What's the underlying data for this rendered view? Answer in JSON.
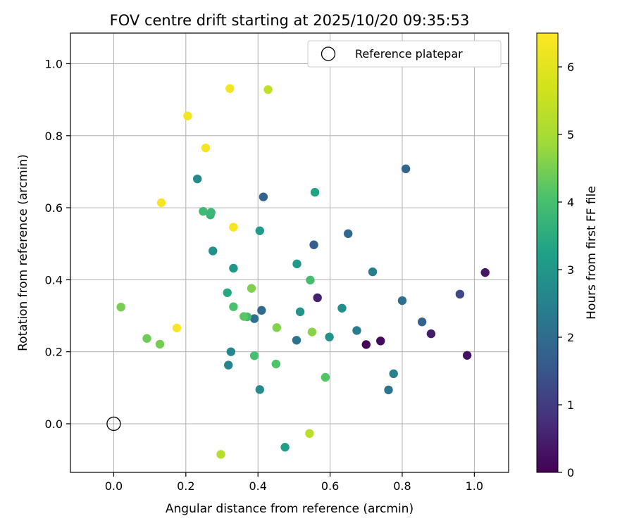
{
  "chart_data": {
    "type": "scatter",
    "title": "FOV centre drift starting at 2025/10/20 09:35:53",
    "xlabel": "Angular distance from reference (arcmin)",
    "ylabel": "Rotation from reference (arcmin)",
    "xlim": [
      -0.12,
      1.095
    ],
    "ylim": [
      -0.135,
      1.085
    ],
    "xticks": [
      0.0,
      0.2,
      0.4,
      0.6,
      0.8,
      1.0
    ],
    "yticks": [
      0.0,
      0.2,
      0.4,
      0.6,
      0.8,
      1.0
    ],
    "xtick_labels": [
      "0.0",
      "0.2",
      "0.4",
      "0.6",
      "0.8",
      "1.0"
    ],
    "ytick_labels": [
      "0.0",
      "0.2",
      "0.4",
      "0.6",
      "0.8",
      "1.0"
    ],
    "grid": true,
    "legend": {
      "placement": "upper right",
      "entries": [
        "Reference platepar"
      ]
    },
    "reference_point": {
      "name": "Reference platepar",
      "x": 0.0,
      "y": 0.0,
      "marker": "open-circle"
    },
    "colorbar": {
      "label": "Hours from first FF file",
      "colormap": "viridis",
      "range": [
        0,
        6.5
      ],
      "ticks": [
        0,
        1,
        2,
        3,
        4,
        5,
        6
      ],
      "tick_labels": [
        "0",
        "1",
        "2",
        "3",
        "4",
        "5",
        "6"
      ]
    },
    "points": [
      {
        "x": 0.7,
        "y": 0.22,
        "hours": 0.05
      },
      {
        "x": 0.74,
        "y": 0.23,
        "hours": 0.15
      },
      {
        "x": 0.98,
        "y": 0.19,
        "hours": 0.25
      },
      {
        "x": 1.03,
        "y": 0.42,
        "hours": 0.35
      },
      {
        "x": 0.88,
        "y": 0.25,
        "hours": 0.45
      },
      {
        "x": 0.565,
        "y": 0.35,
        "hours": 0.55
      },
      {
        "x": 0.96,
        "y": 0.36,
        "hours": 1.25
      },
      {
        "x": 0.555,
        "y": 0.497,
        "hours": 1.7
      },
      {
        "x": 0.415,
        "y": 0.63,
        "hours": 1.75
      },
      {
        "x": 0.855,
        "y": 0.283,
        "hours": 1.8
      },
      {
        "x": 0.81,
        "y": 0.708,
        "hours": 1.85
      },
      {
        "x": 0.65,
        "y": 0.528,
        "hours": 1.9
      },
      {
        "x": 0.41,
        "y": 0.315,
        "hours": 1.95
      },
      {
        "x": 0.39,
        "y": 0.292,
        "hours": 2.05
      },
      {
        "x": 0.8,
        "y": 0.342,
        "hours": 2.1
      },
      {
        "x": 0.507,
        "y": 0.232,
        "hours": 2.15
      },
      {
        "x": 0.762,
        "y": 0.094,
        "hours": 2.2
      },
      {
        "x": 0.674,
        "y": 0.259,
        "hours": 2.35
      },
      {
        "x": 0.718,
        "y": 0.422,
        "hours": 2.4
      },
      {
        "x": 0.776,
        "y": 0.139,
        "hours": 2.45
      },
      {
        "x": 0.318,
        "y": 0.163,
        "hours": 2.55
      },
      {
        "x": 0.325,
        "y": 0.2,
        "hours": 2.6
      },
      {
        "x": 0.232,
        "y": 0.68,
        "hours": 2.7
      },
      {
        "x": 0.405,
        "y": 0.095,
        "hours": 2.75
      },
      {
        "x": 0.633,
        "y": 0.321,
        "hours": 2.8
      },
      {
        "x": 0.275,
        "y": 0.48,
        "hours": 2.85
      },
      {
        "x": 0.598,
        "y": 0.241,
        "hours": 2.9
      },
      {
        "x": 0.517,
        "y": 0.311,
        "hours": 2.95
      },
      {
        "x": 0.332,
        "y": 0.432,
        "hours": 3.0
      },
      {
        "x": 0.508,
        "y": 0.444,
        "hours": 3.05
      },
      {
        "x": 0.405,
        "y": 0.536,
        "hours": 3.1
      },
      {
        "x": 0.475,
        "y": -0.065,
        "hours": 3.2
      },
      {
        "x": 0.558,
        "y": 0.643,
        "hours": 3.3
      },
      {
        "x": 0.315,
        "y": 0.364,
        "hours": 3.4
      },
      {
        "x": 0.268,
        "y": 0.58,
        "hours": 3.7
      },
      {
        "x": 0.27,
        "y": 0.587,
        "hours": 3.8
      },
      {
        "x": 0.248,
        "y": 0.59,
        "hours": 3.85
      },
      {
        "x": 0.37,
        "y": 0.297,
        "hours": 3.9
      },
      {
        "x": 0.545,
        "y": 0.399,
        "hours": 3.95
      },
      {
        "x": 0.39,
        "y": 0.189,
        "hours": 4.0
      },
      {
        "x": 0.332,
        "y": 0.325,
        "hours": 4.05
      },
      {
        "x": 0.45,
        "y": 0.166,
        "hours": 4.1
      },
      {
        "x": 0.587,
        "y": 0.129,
        "hours": 4.15
      },
      {
        "x": 0.361,
        "y": 0.298,
        "hours": 4.2
      },
      {
        "x": 0.092,
        "y": 0.237,
        "hours": 4.4
      },
      {
        "x": 0.128,
        "y": 0.221,
        "hours": 4.45
      },
      {
        "x": 0.02,
        "y": 0.324,
        "hours": 4.5
      },
      {
        "x": 0.382,
        "y": 0.376,
        "hours": 4.55
      },
      {
        "x": 0.452,
        "y": 0.267,
        "hours": 4.6
      },
      {
        "x": 0.55,
        "y": 0.255,
        "hours": 4.65
      },
      {
        "x": 0.297,
        "y": -0.085,
        "hours": 5.2
      },
      {
        "x": 0.543,
        "y": -0.027,
        "hours": 5.3
      },
      {
        "x": 0.428,
        "y": 0.928,
        "hours": 5.4
      },
      {
        "x": 0.322,
        "y": 0.931,
        "hours": 6.3
      },
      {
        "x": 0.205,
        "y": 0.855,
        "hours": 6.3
      },
      {
        "x": 0.255,
        "y": 0.766,
        "hours": 6.35
      },
      {
        "x": 0.132,
        "y": 0.614,
        "hours": 6.35
      },
      {
        "x": 0.332,
        "y": 0.546,
        "hours": 6.4
      },
      {
        "x": 0.175,
        "y": 0.266,
        "hours": 6.4
      }
    ]
  }
}
